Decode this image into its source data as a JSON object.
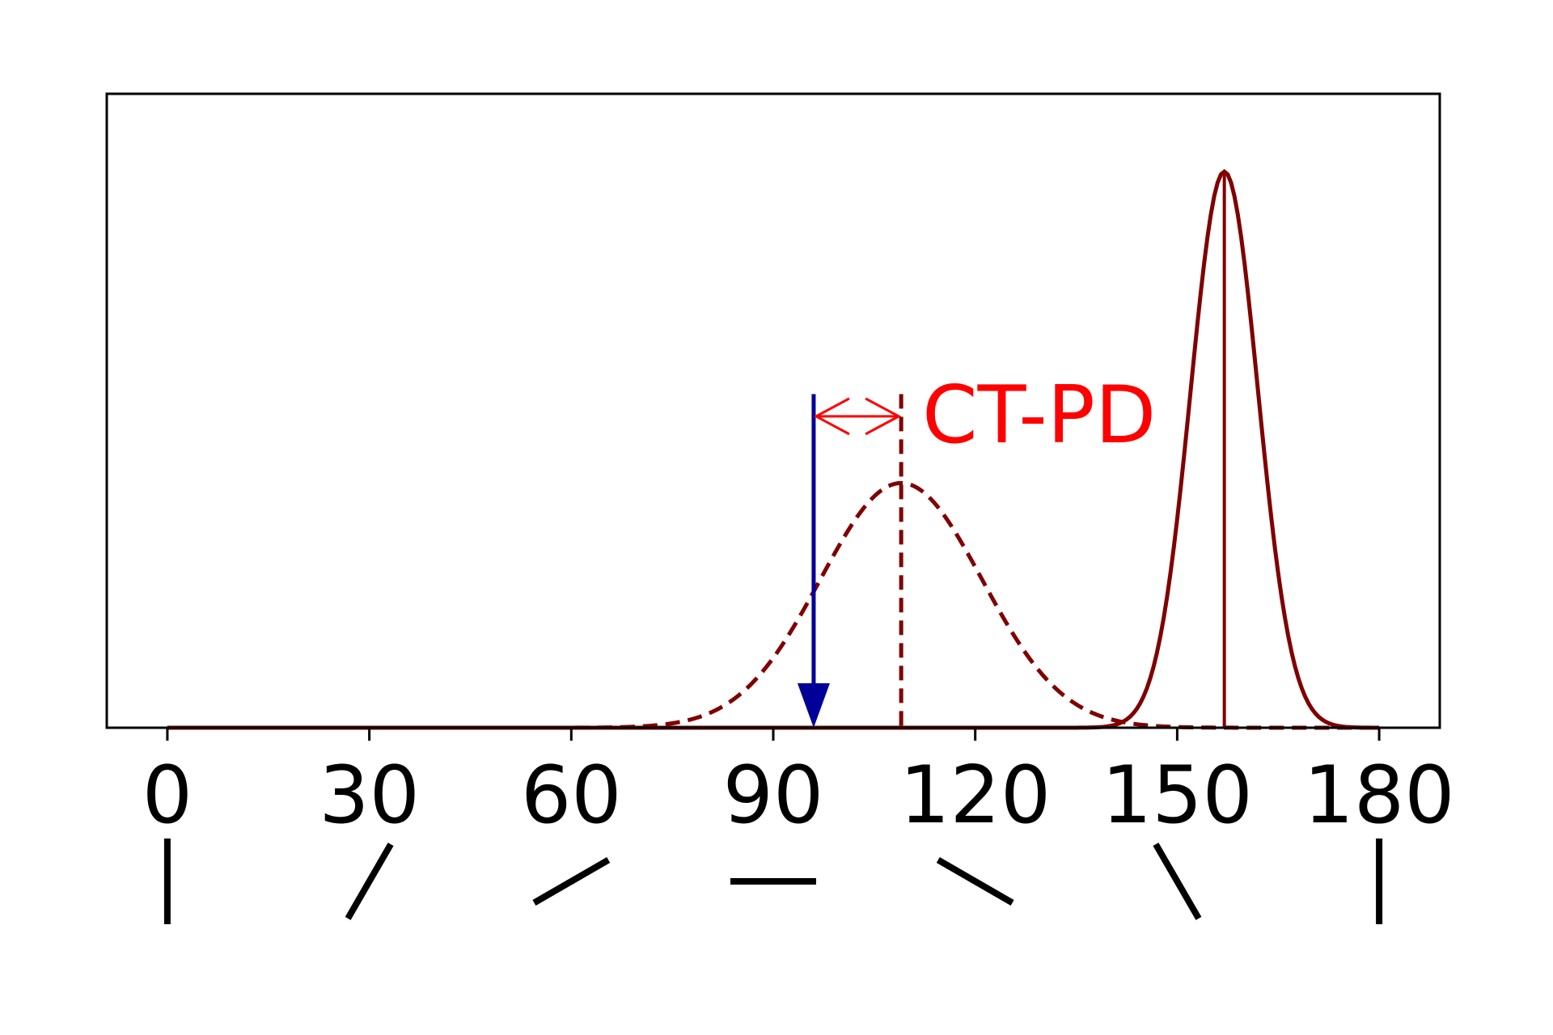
{
  "chart_data": {
    "type": "line",
    "title": "",
    "xlabel": "",
    "ylabel": "",
    "xlim": [
      -9,
      189
    ],
    "ylim": [
      0,
      1.14
    ],
    "x_ticks": [
      0,
      30,
      60,
      90,
      120,
      150,
      180
    ],
    "x_tick_labels": [
      "0",
      "30",
      "60",
      "90",
      "120",
      "150",
      "180"
    ],
    "y_ticks_visible": false,
    "grid": false,
    "legend": "none",
    "orientation_glyphs": [
      {
        "at": 0,
        "angle_deg": 0
      },
      {
        "at": 30,
        "angle_deg": 30
      },
      {
        "at": 60,
        "angle_deg": 60
      },
      {
        "at": 90,
        "angle_deg": 90
      },
      {
        "at": 120,
        "angle_deg": 120
      },
      {
        "at": 150,
        "angle_deg": 150
      },
      {
        "at": 180,
        "angle_deg": 180
      }
    ],
    "series": [
      {
        "style": "dashed",
        "color": "#800000",
        "peak_x": 109,
        "peak_y": 0.44,
        "sigma": 12
      },
      {
        "style": "solid",
        "color": "#800000",
        "peak_x": 157,
        "peak_y": 1.0,
        "sigma": 5
      }
    ],
    "markers": {
      "stimulus_arrow": {
        "x": 96,
        "y_top": 0.6,
        "color": "#000099"
      },
      "dashed_peak_line": {
        "x": 109,
        "y_top": 0.6,
        "color": "#800000"
      },
      "solid_peak_line": {
        "x": 157,
        "color": "#800000"
      }
    },
    "annotation": {
      "text": "CT-PD",
      "color": "#ff0000",
      "from_x": 96,
      "to_x": 109,
      "y": 0.56
    }
  }
}
